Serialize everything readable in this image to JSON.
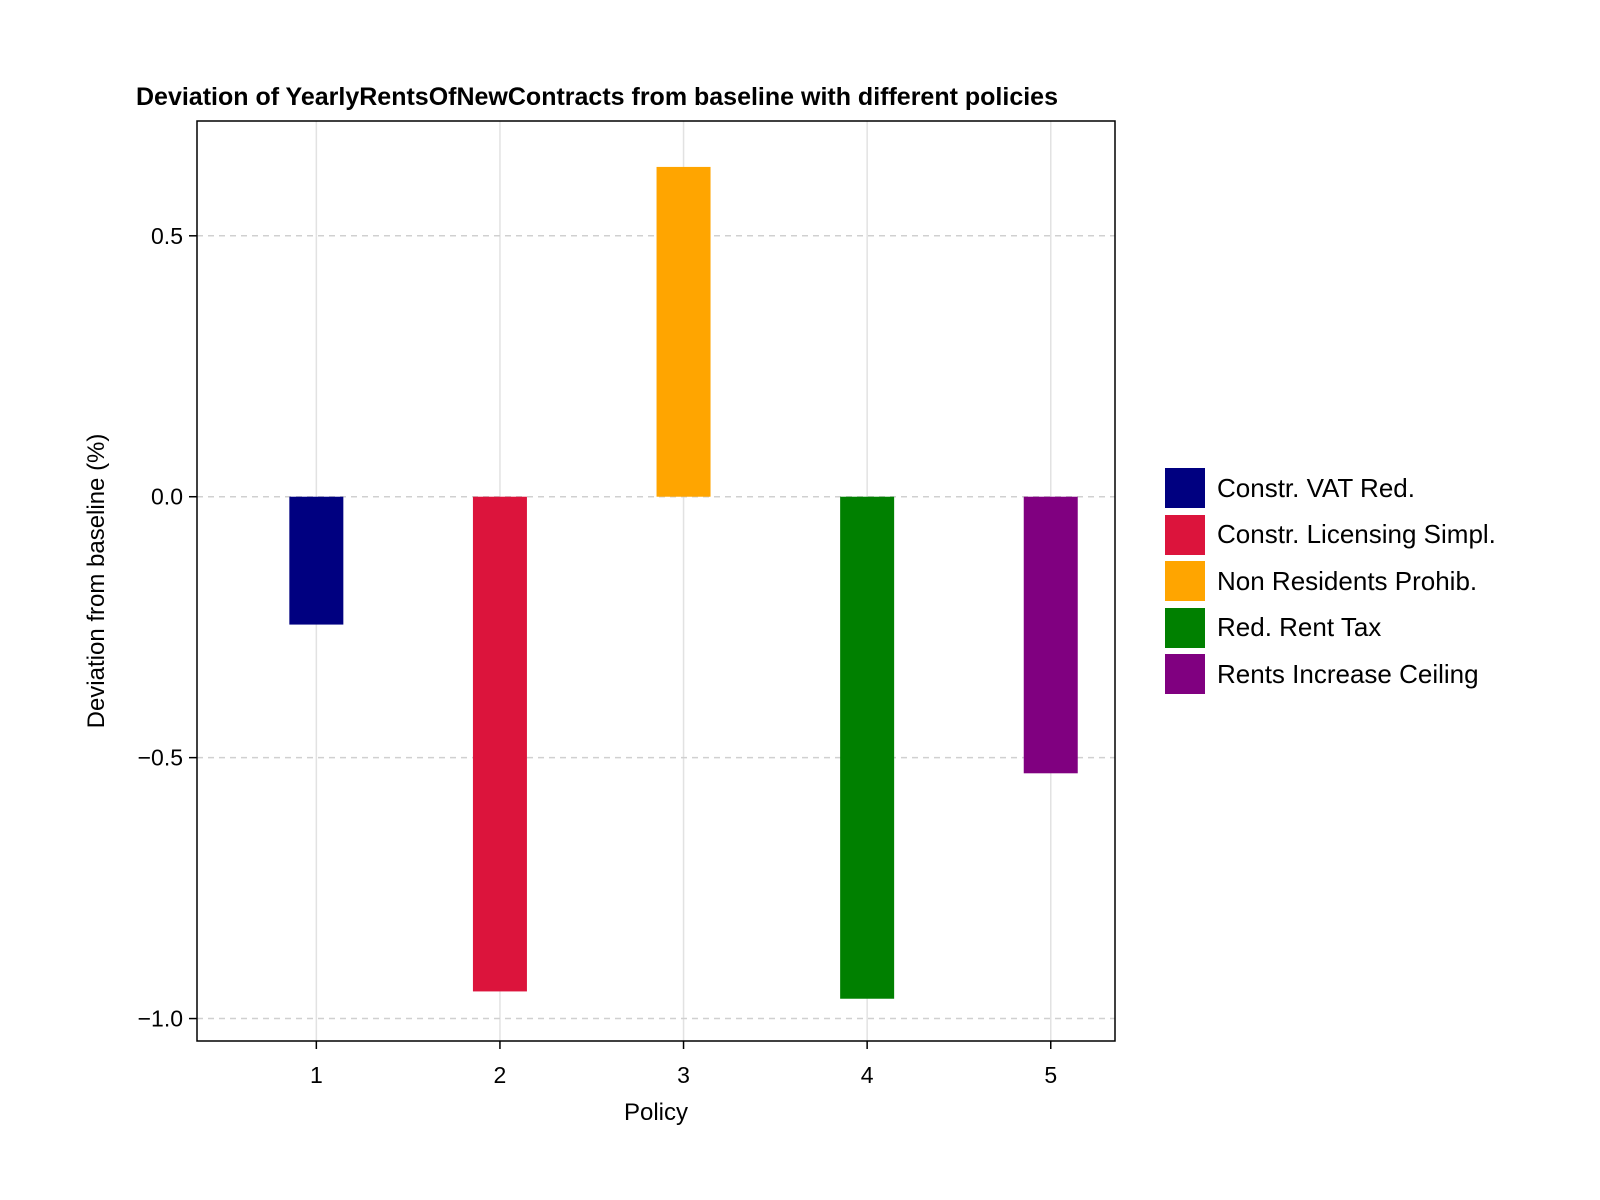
{
  "chart_data": {
    "type": "bar",
    "title": "Deviation of YearlyRentsOfNewContracts from baseline with different policies",
    "xlabel": "Policy",
    "ylabel": "Deviation from baseline (%)",
    "categories": [
      "1",
      "2",
      "3",
      "4",
      "5"
    ],
    "values": [
      -0.245,
      -0.948,
      0.632,
      -0.962,
      -0.53
    ],
    "colors": [
      "#000080",
      "#dc143c",
      "#ffa500",
      "#008000",
      "#800080"
    ],
    "ylim": [
      -1.043,
      0.72
    ],
    "xlim": [
      0.35,
      5.35
    ],
    "yticks": [
      0.5,
      0.0,
      -0.5,
      -1.0
    ],
    "ytick_labels": [
      "0.5",
      "0.0",
      "−0.5",
      "−1.0"
    ],
    "grid": true,
    "legend_position": "right",
    "legend": [
      {
        "label": "Constr. VAT Red.",
        "color": "#000080"
      },
      {
        "label": "Constr. Licensing Simpl.",
        "color": "#dc143c"
      },
      {
        "label": "Non Residents Prohib.",
        "color": "#ffa500"
      },
      {
        "label": "Red. Rent Tax",
        "color": "#008000"
      },
      {
        "label": "Rents Increase Ceiling",
        "color": "#800080"
      }
    ]
  }
}
